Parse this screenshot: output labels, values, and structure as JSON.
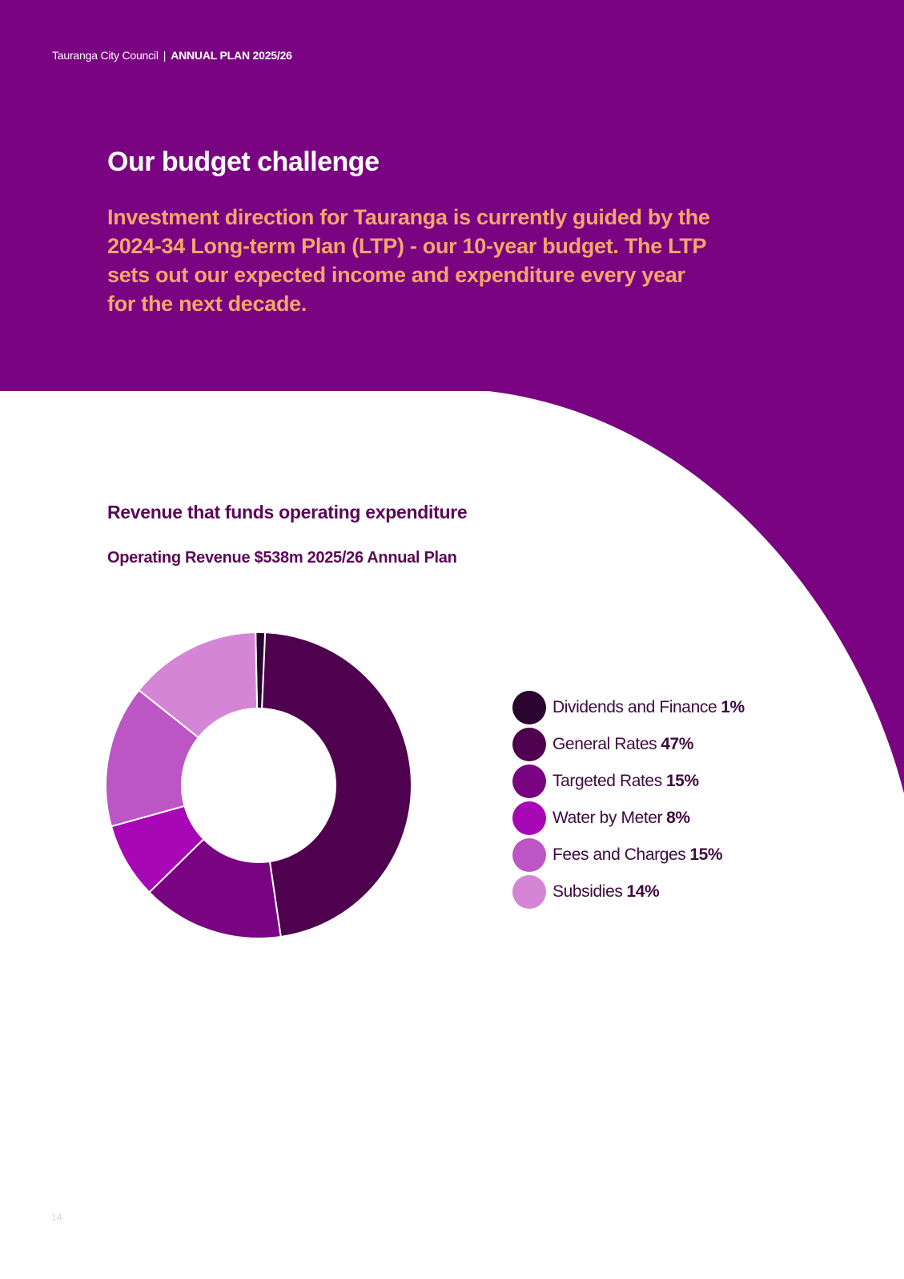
{
  "page": {
    "organisation": "Tauranga City Council",
    "separator": "|",
    "document": "ANNUAL PLAN 2025/26",
    "title": "Our budget challenge",
    "intro": "Investment direction for Tauranga is currently guided by the 2024-34 Long-term Plan (LTP) - our 10-year budget. The LTP sets out our expected income and expenditure every year for the next decade.",
    "page_number": "14"
  },
  "colors": {
    "brand_purple": "#790380",
    "intro_orange": "#f6a56b",
    "heading_purple": "#5a0757"
  },
  "chart_data": {
    "type": "pie",
    "title": "Revenue that funds operating expenditure",
    "subtitle": "Operating Revenue $538m 2025/26 Annual Plan",
    "donut": true,
    "legend_position": "right",
    "unit": "%",
    "slices": [
      {
        "label": "Dividends and Finance",
        "value": 1,
        "display": "1%",
        "color": "#2b0530"
      },
      {
        "label": "General Rates",
        "value": 47,
        "display": "47%",
        "color": "#4f004e"
      },
      {
        "label": "Targeted Rates",
        "value": 15,
        "display": "15%",
        "color": "#790380"
      },
      {
        "label": "Water by Meter",
        "value": 8,
        "display": "8%",
        "color": "#a707b5"
      },
      {
        "label": "Fees and Charges",
        "value": 15,
        "display": "15%",
        "color": "#bb56c4"
      },
      {
        "label": "Subsidies",
        "value": 14,
        "display": "14%",
        "color": "#d485d5"
      }
    ]
  }
}
